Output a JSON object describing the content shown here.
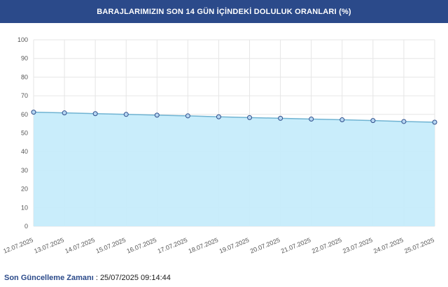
{
  "header": {
    "title": "BARAJLARIMIZIN SON 14 GÜN İÇİNDEKİ DOLULUK ORANLARI (%)"
  },
  "footer": {
    "label": "Son Güncelleme Zamanı",
    "separator": " : ",
    "value": "25/07/2025 09:14:44"
  },
  "colors": {
    "header_bg": "#2b4a8a",
    "area_fill": "#c6ecfb",
    "line": "#6fb3d2",
    "marker_fill": "#b7d7f3",
    "marker_stroke": "#2e4e8a",
    "grid": "#e6e6e6"
  },
  "chart_data": {
    "type": "area",
    "title": "BARAJLARIMIZIN SON 14 GÜN İÇİNDEKİ DOLULUK ORANLARI (%)",
    "xlabel": "",
    "ylabel": "",
    "ylim": [
      0,
      100
    ],
    "yticks": [
      0,
      10,
      20,
      30,
      40,
      50,
      60,
      70,
      80,
      90,
      100
    ],
    "grid": true,
    "categories": [
      "12.07.2025",
      "13.07.2025",
      "14.07.2025",
      "15.07.2025",
      "16.07.2025",
      "17.07.2025",
      "18.07.2025",
      "19.07.2025",
      "20.07.2025",
      "21.07.2025",
      "22.07.2025",
      "23.07.2025",
      "24.07.2025",
      "25.07.2025"
    ],
    "values": [
      61.2,
      60.8,
      60.4,
      60.0,
      59.6,
      59.2,
      58.7,
      58.3,
      57.9,
      57.5,
      57.1,
      56.7,
      56.2,
      55.8
    ]
  }
}
